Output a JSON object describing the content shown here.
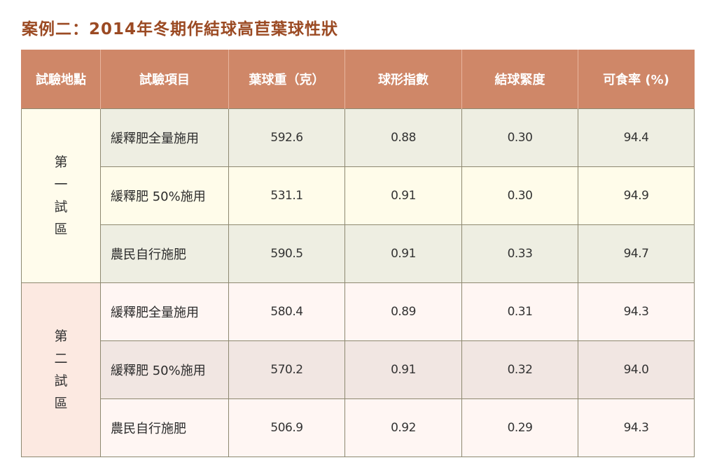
{
  "title": "案例二：2014年冬期作結球高苣葉球性狀",
  "headers": [
    "試驗地點",
    "試驗項目",
    "葉球重（克）",
    "球形指數",
    "結球緊度",
    "可食率 (%)"
  ],
  "zones": [
    {
      "label_chars": [
        "第",
        "一",
        "試",
        "區"
      ],
      "rows": [
        {
          "item": "緩釋肥全量施用",
          "weight": "592.6",
          "shape_index": "0.88",
          "firmness": "0.30",
          "edible_rate": "94.4"
        },
        {
          "item": "緩釋肥 50%施用",
          "weight": "531.1",
          "shape_index": "0.91",
          "firmness": "0.30",
          "edible_rate": "94.9"
        },
        {
          "item": "農民自行施肥",
          "weight": "590.5",
          "shape_index": "0.91",
          "firmness": "0.33",
          "edible_rate": "94.7"
        }
      ]
    },
    {
      "label_chars": [
        "第",
        "二",
        "試",
        "區"
      ],
      "rows": [
        {
          "item": "緩釋肥全量施用",
          "weight": "580.4",
          "shape_index": "0.89",
          "firmness": "0.31",
          "edible_rate": "94.3"
        },
        {
          "item": "緩釋肥 50%施用",
          "weight": "570.2",
          "shape_index": "0.91",
          "firmness": "0.32",
          "edible_rate": "94.0"
        },
        {
          "item": "農民自行施肥",
          "weight": "506.9",
          "shape_index": "0.92",
          "firmness": "0.29",
          "edible_rate": "94.3"
        }
      ]
    }
  ],
  "colors": {
    "title": "#9b4a23",
    "header_bg": "#cf8768",
    "header_text": "#ffffff",
    "zone1_label_bg": "#fffcec",
    "zone2_label_bg": "#fce9e1",
    "border": "#8d8870"
  }
}
